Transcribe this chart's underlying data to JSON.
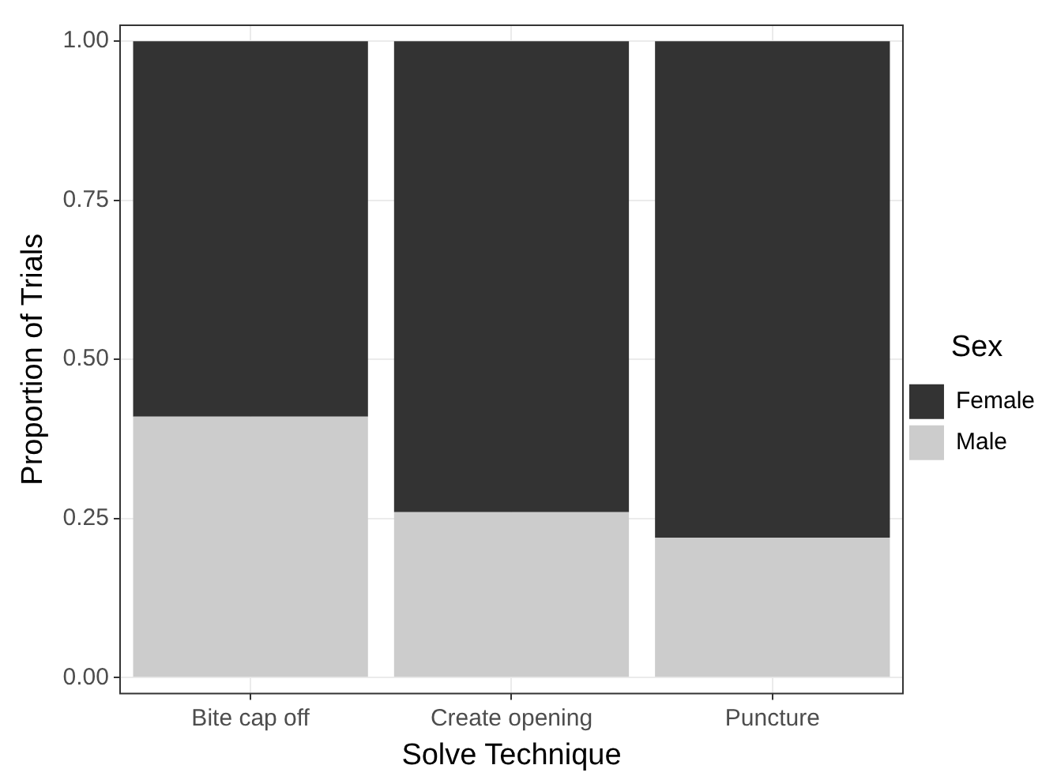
{
  "chart_data": {
    "type": "bar",
    "stacked": true,
    "xlabel": "Solve Technique",
    "ylabel": "Proportion of Trials",
    "legend_title": "Sex",
    "legend": "right",
    "grid": true,
    "categories": [
      "Bite cap off",
      "Create opening",
      "Puncture"
    ],
    "series": [
      {
        "name": "Male",
        "color": "#cccccc",
        "values": [
          0.41,
          0.26,
          0.22
        ]
      },
      {
        "name": "Female",
        "color": "#333333",
        "values": [
          0.59,
          0.74,
          0.78
        ]
      }
    ],
    "ylim": [
      -0.025,
      1.025
    ],
    "yticks": [
      {
        "value": 0,
        "label": "0.00"
      },
      {
        "value": 0.25,
        "label": "0.25"
      },
      {
        "value": 0.5,
        "label": "0.50"
      },
      {
        "value": 0.75,
        "label": "0.75"
      },
      {
        "value": 1,
        "label": "1.00"
      }
    ]
  }
}
